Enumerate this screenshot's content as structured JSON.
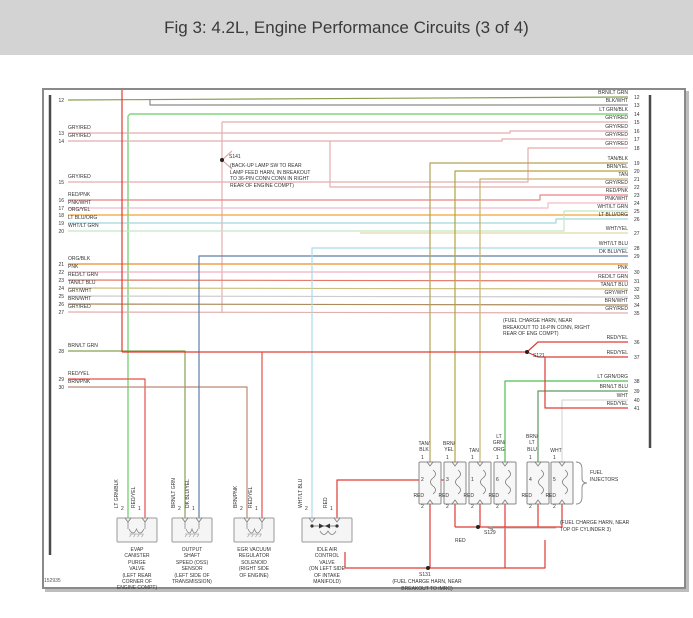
{
  "header": {
    "title": "Fig 3: 4.2L, Engine Performance Circuits (3 of 4)"
  },
  "diagram": {
    "code": "152935",
    "left_pins": [
      {
        "pin": "12",
        "wire": ""
      },
      {
        "pin": "13",
        "wire": "GRY/RED"
      },
      {
        "pin": "14",
        "wire": "GRY/RED"
      },
      {
        "pin": "15",
        "wire": "GRY/RED"
      },
      {
        "pin": "16",
        "wire": "RED/PNK"
      },
      {
        "pin": "17",
        "wire": "PNK/WHT"
      },
      {
        "pin": "18",
        "wire": "ORG/YEL"
      },
      {
        "pin": "19",
        "wire": "LT BLU/ORG"
      },
      {
        "pin": "20",
        "wire": "WHT/LT GRN"
      },
      {
        "pin": "21",
        "wire": "ORG/BLK"
      },
      {
        "pin": "22",
        "wire": "PNK"
      },
      {
        "pin": "23",
        "wire": "RED/LT GRN"
      },
      {
        "pin": "24",
        "wire": "TAN/LT BLU"
      },
      {
        "pin": "25",
        "wire": "GRY/WHT"
      },
      {
        "pin": "26",
        "wire": "BRN/WHT"
      },
      {
        "pin": "27",
        "wire": "GRY/RED"
      },
      {
        "pin": "28",
        "wire": "BRN/LT GRN"
      },
      {
        "pin": "29",
        "wire": "RED/YEL"
      },
      {
        "pin": "30",
        "wire": "BRN/PNK"
      }
    ],
    "right_pins": [
      {
        "wire": "BRN/LT GRN",
        "pin": "12"
      },
      {
        "wire": "BLK/WHT",
        "pin": "13"
      },
      {
        "wire": "LT GRN/BLK",
        "pin": "14"
      },
      {
        "wire": "GRY/RED",
        "pin": "15"
      },
      {
        "wire": "GRY/RED",
        "pin": "16"
      },
      {
        "wire": "GRY/RED",
        "pin": "17"
      },
      {
        "wire": "GRY/RED",
        "pin": "18"
      },
      {
        "wire": "TAN/BLK",
        "pin": "19"
      },
      {
        "wire": "BRN/YEL",
        "pin": "20"
      },
      {
        "wire": "TAN",
        "pin": "21"
      },
      {
        "wire": "GRY/RED",
        "pin": "22"
      },
      {
        "wire": "RED/PNK",
        "pin": "23"
      },
      {
        "wire": "PNK/WHT",
        "pin": "24"
      },
      {
        "wire": "WHT/LT GRN",
        "pin": "25"
      },
      {
        "wire": "LT BLU/ORG",
        "pin": "26"
      },
      {
        "wire": "WHT/YEL",
        "pin": "27"
      },
      {
        "wire": "WHT/LT BLU",
        "pin": "28"
      },
      {
        "wire": "DK BLU/YEL",
        "pin": "29"
      },
      {
        "wire": "PNK",
        "pin": "30"
      },
      {
        "wire": "RED/LT GRN",
        "pin": "31"
      },
      {
        "wire": "TAN/LT BLU",
        "pin": "32"
      },
      {
        "wire": "GRY/WHT",
        "pin": "33"
      },
      {
        "wire": "BRN/WHT",
        "pin": "34"
      },
      {
        "wire": "GRY/RED",
        "pin": "35"
      },
      {
        "wire": "RED/YEL",
        "pin": "36"
      },
      {
        "wire": "RED/YEL",
        "pin": "37"
      },
      {
        "wire": "LT GRN/ORG",
        "pin": "38"
      },
      {
        "wire": "BRN/LT BLU",
        "pin": "39"
      },
      {
        "wire": "WHT",
        "pin": "40"
      },
      {
        "wire": "RED/YEL",
        "pin": "41"
      }
    ],
    "splices": {
      "s141": {
        "label": "S141",
        "note_lines": [
          "(BACK-UP LAMP SW TO REAR",
          "LAMP FEED HARN, IN BREAKOUT",
          "TO 36-PIN CONN CONN IN RIGHT",
          "REAR OF ENGINE COMPT)"
        ]
      },
      "s121": {
        "label": "S121",
        "note_lines": [
          "(FUEL CHARGE HARN, NEAR",
          "BREAKOUT TO 16-PIN CONN, RIGHT",
          "REAR OF ENG COMPT)"
        ]
      },
      "s129": {
        "label": "S129",
        "note_lines": [
          "(FUEL CHARGE HARN, NEAR",
          "TOP OF CYLINDER 3)"
        ]
      },
      "s131": {
        "label": "S131",
        "note_lines": [
          "(FUEL CHARGE HARN, NEAR",
          "BREAKOUT TO IMRC)"
        ]
      }
    },
    "components": [
      {
        "id": "evap-canister-purge-valve",
        "label_lines": [
          "EVAP",
          "CANISTER",
          "PURGE",
          "VALVE",
          "(LEFT REAR",
          "CORNER OF",
          "ENGINE COMPT)"
        ],
        "pins": [
          {
            "num": "2",
            "wire": "LT GRN/BLK"
          },
          {
            "num": "1",
            "wire": "RED/YEL"
          }
        ]
      },
      {
        "id": "output-shaft-speed-sensor",
        "label_lines": [
          "OUTPUT",
          "SHAFT",
          "SPEED (OSS)",
          "SENSOR",
          "(LEFT SIDE OF",
          "TRANSMISSION)"
        ],
        "pins": [
          {
            "num": "2",
            "wire": "BRN/LT GRN"
          },
          {
            "num": "1",
            "wire": "DK BLU/YEL"
          }
        ]
      },
      {
        "id": "egr-vacuum-regulator-solenoid",
        "label_lines": [
          "EGR VACUUM",
          "REGULATOR",
          "SOLENOID",
          "(RIGHT SIDE",
          "OF ENGINE)"
        ],
        "pins": [
          {
            "num": "2",
            "wire": "BRN/PNK"
          },
          {
            "num": "1",
            "wire": "RED/YEL"
          }
        ]
      },
      {
        "id": "idle-air-control-valve",
        "label_lines": [
          "IDLE AIR",
          "CONTROL",
          "VALVE",
          "(ON LEFT SIDE",
          "OF INTAKE",
          "MANIFOLD)"
        ],
        "pins": [
          {
            "num": "2",
            "wire": "WHT/LT BLU"
          },
          {
            "num": "1",
            "wire": "RED"
          }
        ]
      }
    ],
    "fuel_injectors": {
      "label_lines": [
        "FUEL",
        "INJECTORS"
      ],
      "pin_top": "1",
      "pin_bottom": "2",
      "bottom_wire": "RED",
      "items": [
        {
          "cylinder": "2",
          "wire": "TAN/BLK",
          "wire_lines": [
            "TAN/",
            "BLK"
          ]
        },
        {
          "cylinder": "3",
          "wire": "BRN/YEL",
          "wire_lines": [
            "BRN/",
            "YEL"
          ]
        },
        {
          "cylinder": "1",
          "wire": "TAN",
          "wire_lines": [
            "TAN"
          ]
        },
        {
          "cylinder": "6",
          "wire": "LT GRN/ORG",
          "wire_lines": [
            "LT",
            "GRN/",
            "ORG"
          ]
        },
        {
          "cylinder": "4",
          "wire": "BRN/LT BLU",
          "wire_lines": [
            "BRN/",
            "LT",
            "BLU"
          ]
        },
        {
          "cylinder": "5",
          "wire": "WHT",
          "wire_lines": [
            "WHT"
          ]
        }
      ]
    },
    "extra_labels": {
      "red": "RED"
    },
    "wire_colors": {
      "GRY/RED": "#e3aeae",
      "RED/PNK": "#ea8585",
      "PNK/WHT": "#f3bccb",
      "ORG/YEL": "#f0a235",
      "LT BLU/ORG": "#9fd8dc",
      "WHT/LT GRN": "#c5e6c5",
      "ORG/BLK": "#e88f2a",
      "PNK": "#f2afc3",
      "RED/LT GRN": "#e4796a",
      "TAN/LT BLU": "#cdbd7e",
      "GRY/WHT": "#cccccc",
      "BRN/WHT": "#ab8a5c",
      "BRN/LT GRN": "#86a050",
      "RED/YEL": "#e5504a",
      "BRN/PNK": "#b98a74",
      "BRN/LT BLU": "#5f9a60",
      "LT GRN/BLK": "#67cf67",
      "BLK/WHT": "#8a8a8a",
      "TAN/BLK": "#b3a257",
      "BRN/YEL": "#b5a33e",
      "TAN": "#c6b272",
      "WHT/YEL": "#dfdaa8",
      "WHT/LT BLU": "#aadbe8",
      "DK BLU/YEL": "#5c7ea6",
      "LT GRN/ORG": "#4cc04c",
      "WHT": "#d9d9d9",
      "RED": "#e03a34"
    }
  }
}
